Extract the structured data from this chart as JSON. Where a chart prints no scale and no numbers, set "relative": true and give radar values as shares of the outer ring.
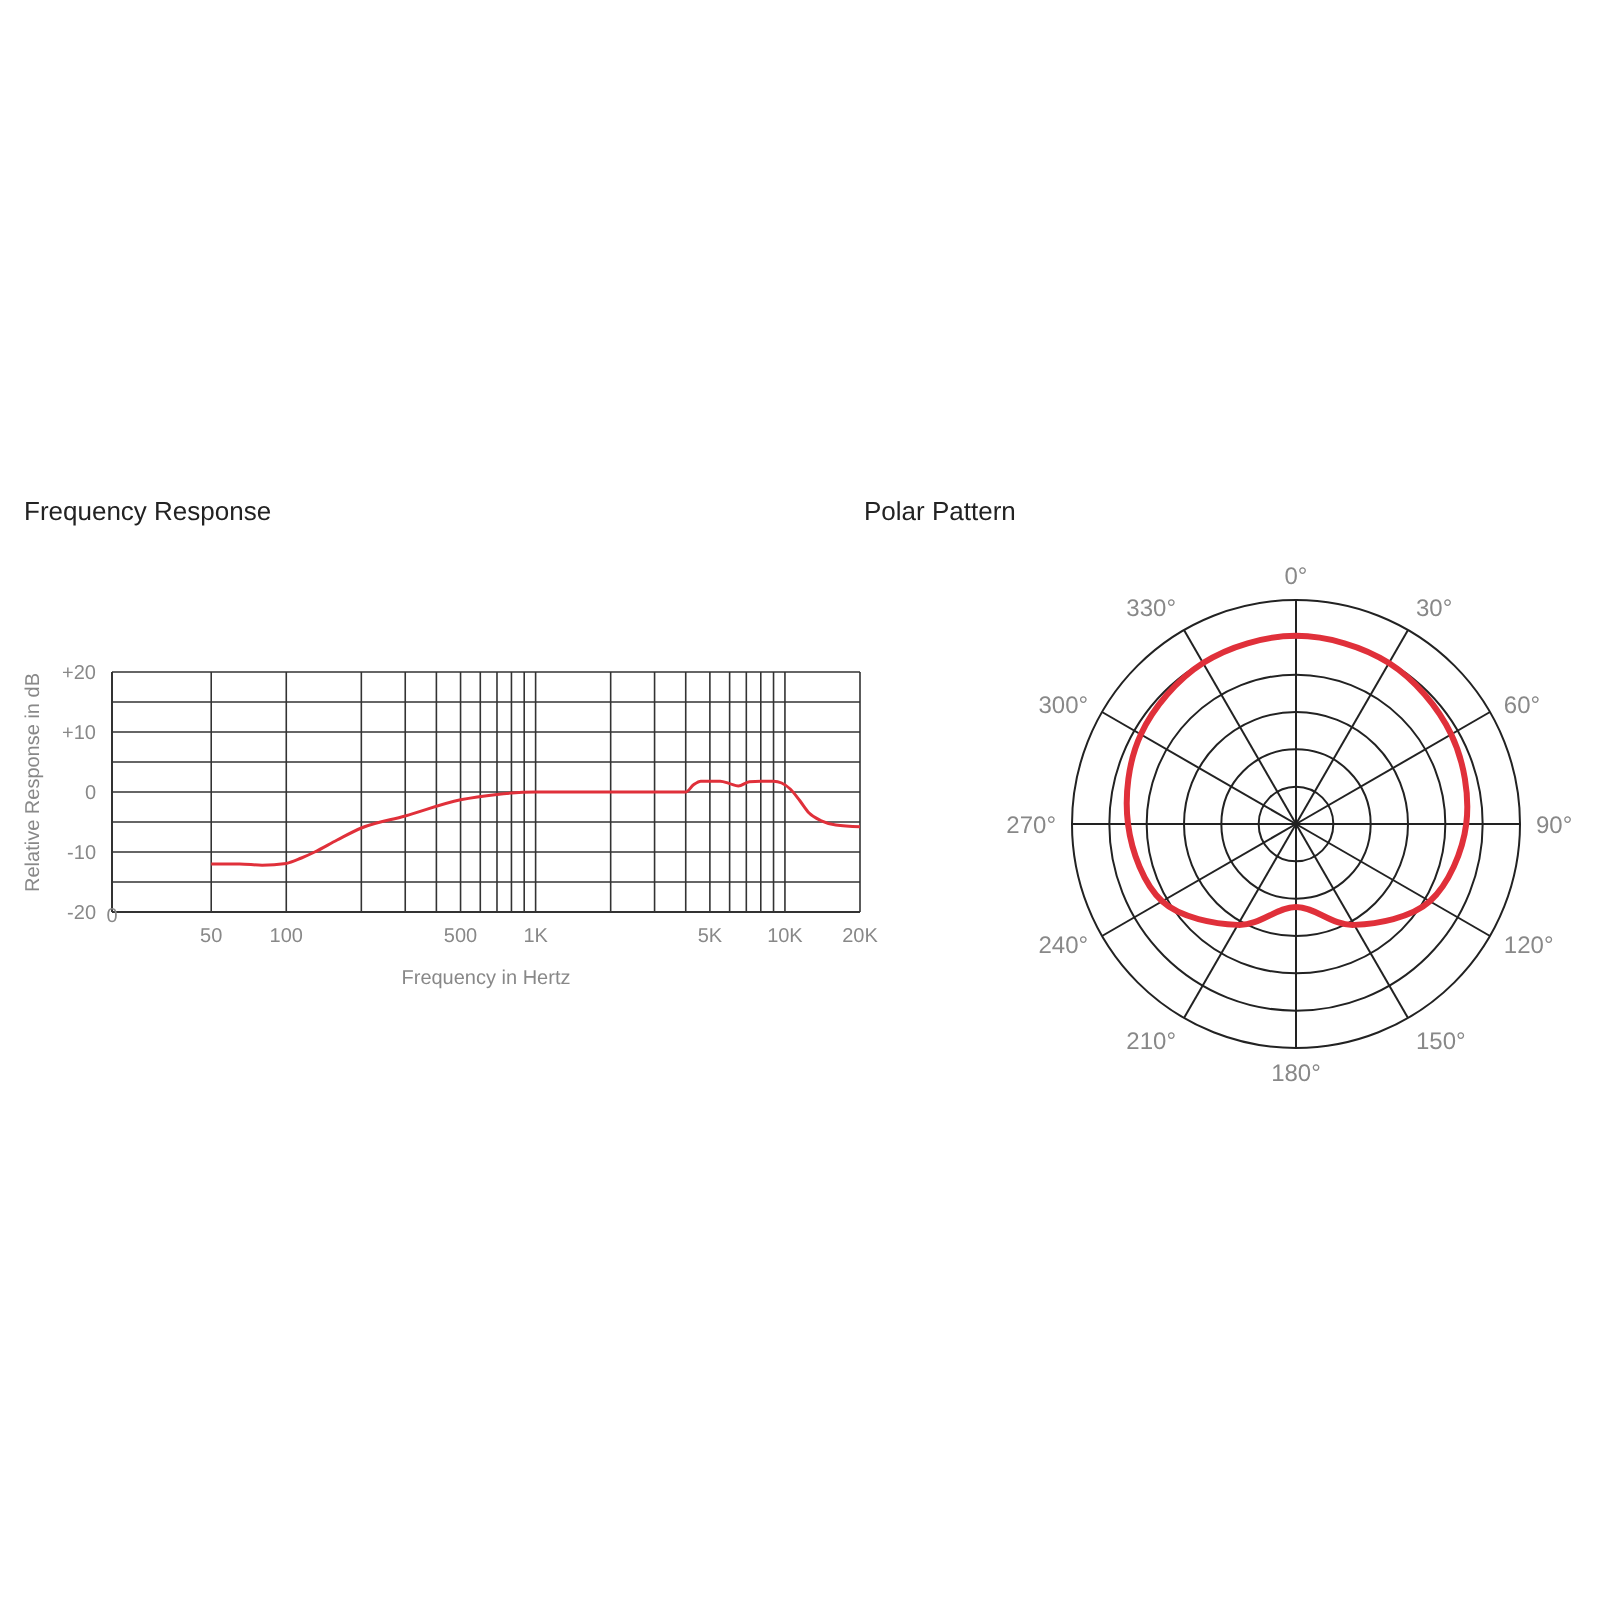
{
  "chart_data": [
    {
      "type": "line",
      "title": "Frequency Response",
      "xlabel": "Frequency in Hertz",
      "ylabel": "Relative Response in dB",
      "log": "x",
      "grid": true,
      "marker": "none",
      "line_style": "solid",
      "color": "#e0303a",
      "x": [
        50,
        65,
        80,
        100,
        115,
        130,
        160,
        200,
        300,
        500,
        700,
        1000,
        2000,
        4000,
        4300,
        4600,
        5500,
        6000,
        6500,
        7200,
        8000,
        9000,
        9700,
        10500,
        11500,
        12500,
        14000,
        16000,
        20000
      ],
      "values": [
        -12,
        -12,
        -12.2,
        -11.9,
        -11,
        -10,
        -8,
        -6,
        -4,
        -1.3,
        -0.4,
        0,
        0,
        0,
        1.2,
        1.8,
        1.8,
        1.4,
        1,
        1.7,
        1.8,
        1.8,
        1.5,
        0.5,
        -1.5,
        -3.5,
        -4.8,
        -5.5,
        -5.8
      ],
      "xlim": [
        20,
        20000
      ],
      "annotations": [
        "0"
      ],
      "xticks": [
        {
          "value": 20,
          "label": null
        },
        50,
        100,
        {
          "value": 200,
          "label": null
        },
        {
          "value": 300,
          "label": null
        },
        {
          "value": 400,
          "label": null
        },
        500,
        {
          "value": 600,
          "label": null
        },
        {
          "value": 700,
          "label": null
        },
        {
          "value": 800,
          "label": null
        },
        {
          "value": 900,
          "label": null
        },
        {
          "value": 1000,
          "label": "1K"
        },
        {
          "value": 2000,
          "label": null
        },
        {
          "value": 3000,
          "label": null
        },
        {
          "value": 4000,
          "label": null
        },
        {
          "value": 5000,
          "label": "5K"
        },
        {
          "value": 6000,
          "label": null
        },
        {
          "value": 7000,
          "label": null
        },
        {
          "value": 8000,
          "label": null
        },
        {
          "value": 9000,
          "label": null
        },
        {
          "value": 10000,
          "label": "10K"
        },
        {
          "value": 20000,
          "label": "20K"
        }
      ],
      "ylim": [
        -20,
        20
      ],
      "yticks": [
        -20,
        {
          "value": -15,
          "label": null
        },
        -10,
        {
          "value": -5,
          "label": null
        },
        0,
        {
          "value": 5,
          "label": null
        },
        {
          "value": 10,
          "label": "+10"
        },
        {
          "value": 15,
          "label": null
        },
        {
          "value": 20,
          "label": "+20"
        }
      ]
    },
    {
      "type": "radar",
      "title": "Polar Pattern",
      "relative": true,
      "categories": [
        "0°",
        "30°",
        "60°",
        "90°",
        "120°",
        "150°",
        "180°",
        "210°",
        "240°",
        "270°",
        "300°",
        "330°"
      ],
      "series": [
        {
          "color": "#e0303a",
          "values": [
            0.84,
            0.83,
            0.8,
            0.76,
            0.69,
            0.52,
            0.37,
            0.52,
            0.69,
            0.75,
            0.8,
            0.83
          ]
        }
      ]
    }
  ]
}
